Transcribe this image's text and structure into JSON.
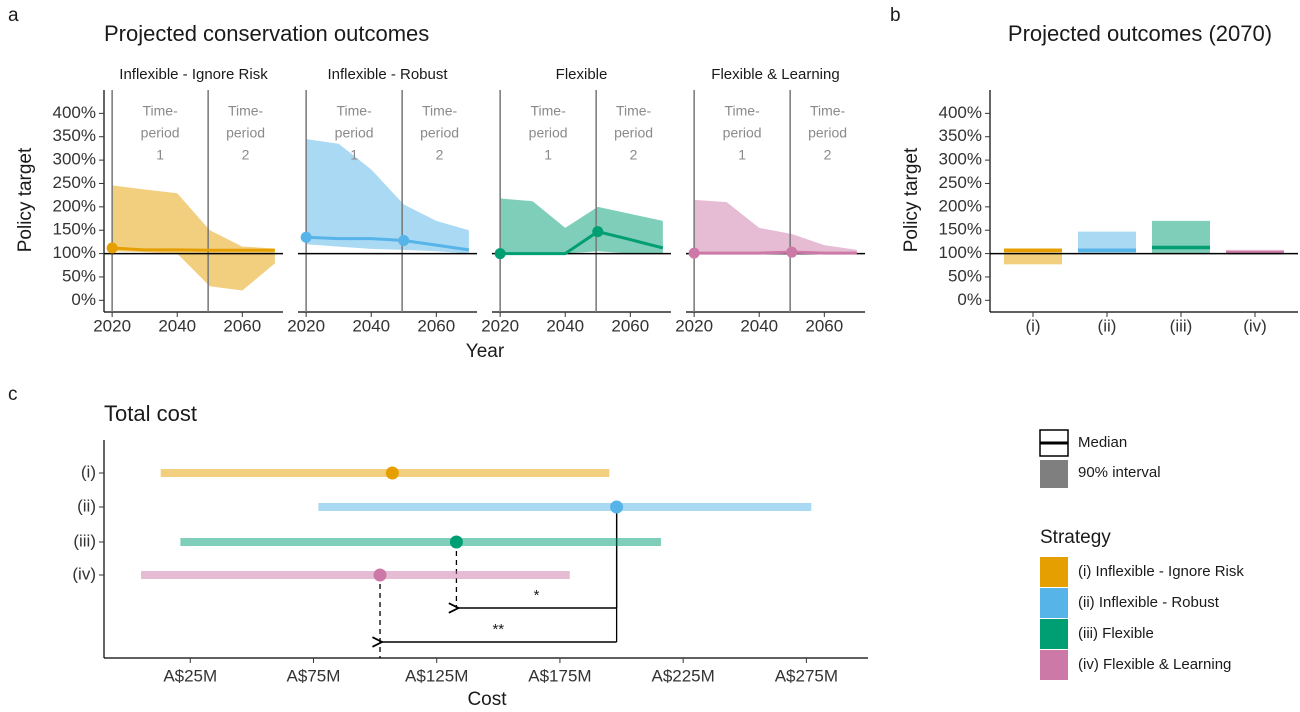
{
  "chart_data": [
    {
      "type": "line",
      "panel": "a",
      "title": "Projected conservation outcomes",
      "x_label": "Year",
      "y_label": "Policy target",
      "xlim": [
        2017.5,
        2072.5
      ],
      "xticks": [
        2020,
        2040,
        2060
      ],
      "ylim": [
        -25,
        450
      ],
      "yticks": [
        {
          "value": 0,
          "label": "0%"
        },
        {
          "value": 50,
          "label": "50%"
        },
        {
          "value": 100,
          "label": "100%"
        },
        {
          "value": 150,
          "label": "150%"
        },
        {
          "value": 200,
          "label": "200%"
        },
        {
          "value": 250,
          "label": "250%"
        },
        {
          "value": 300,
          "label": "300%"
        },
        {
          "value": 350,
          "label": "350%"
        },
        {
          "value": 400,
          "label": "400%"
        }
      ],
      "reference_line": 100,
      "period_breaks": [
        2020,
        2049.5
      ],
      "period_labels": [
        [
          "Time-",
          "period",
          "1"
        ],
        [
          "Time-",
          "period",
          "2"
        ]
      ],
      "facets": [
        {
          "name": "Inflexible - Ignore Risk",
          "color": "#E69F00",
          "x": [
            2020,
            2030,
            2040,
            2050,
            2060,
            2070
          ],
          "median": [
            112,
            108,
            108,
            107,
            107,
            107
          ],
          "lower": [
            105,
            103,
            100,
            30,
            21,
            79
          ],
          "upper": [
            246,
            237,
            229,
            150,
            115,
            111
          ],
          "marker_x": [
            2020
          ]
        },
        {
          "name": "Inflexible - Robust",
          "color": "#56B4E9",
          "x": [
            2020,
            2030,
            2040,
            2050,
            2060,
            2070
          ],
          "median": [
            135,
            132,
            132,
            128,
            118,
            108
          ],
          "lower": [
            120,
            115,
            110,
            108,
            105,
            100
          ],
          "upper": [
            345,
            335,
            280,
            205,
            170,
            150
          ],
          "marker_x": [
            2020,
            2050
          ]
        },
        {
          "name": "Flexible",
          "color": "#009E73",
          "x": [
            2020,
            2030,
            2040,
            2050,
            2060,
            2070
          ],
          "median": [
            100,
            100,
            100,
            147,
            130,
            112
          ],
          "lower": [
            100,
            100,
            100,
            105,
            100,
            100
          ],
          "upper": [
            218,
            212,
            155,
            200,
            185,
            170
          ],
          "marker_x": [
            2020,
            2050
          ]
        },
        {
          "name": "Flexible & Learning",
          "color": "#CC79A7",
          "x": [
            2020,
            2030,
            2040,
            2050,
            2060,
            2070
          ],
          "median": [
            101,
            101,
            101,
            103,
            101,
            101
          ],
          "lower": [
            100,
            100,
            100,
            100,
            100,
            100
          ],
          "upper": [
            215,
            210,
            155,
            142,
            118,
            108
          ],
          "marker_x": [
            2020,
            2050
          ]
        }
      ]
    },
    {
      "type": "range_bar",
      "panel": "b",
      "title": "Projected outcomes (2070)",
      "y_label": "Policy target",
      "ylim": [
        -25,
        450
      ],
      "yticks": [
        {
          "value": 0,
          "label": "0%"
        },
        {
          "value": 50,
          "label": "50%"
        },
        {
          "value": 100,
          "label": "100%"
        },
        {
          "value": 150,
          "label": "150%"
        },
        {
          "value": 200,
          "label": "200%"
        },
        {
          "value": 250,
          "label": "250%"
        },
        {
          "value": 300,
          "label": "300%"
        },
        {
          "value": 350,
          "label": "350%"
        },
        {
          "value": 400,
          "label": "400%"
        }
      ],
      "reference_line": 100,
      "categories": [
        "(i)",
        "(ii)",
        "(iii)",
        "(iv)"
      ],
      "colors": [
        "#E69F00",
        "#56B4E9",
        "#009E73",
        "#CC79A7"
      ],
      "median": [
        107,
        107,
        113,
        102
      ],
      "lower": [
        77,
        100,
        100,
        100
      ],
      "upper": [
        110,
        147,
        170,
        108
      ]
    },
    {
      "type": "interval",
      "panel": "c",
      "title": "Total cost",
      "x_label": "Cost",
      "xlim": [
        -10,
        300
      ],
      "xticks": [
        {
          "value": 25,
          "label": "A$25M"
        },
        {
          "value": 75,
          "label": "A$75M"
        },
        {
          "value": 125,
          "label": "A$125M"
        },
        {
          "value": 175,
          "label": "A$175M"
        },
        {
          "value": 225,
          "label": "A$225M"
        },
        {
          "value": 275,
          "label": "A$275M"
        }
      ],
      "categories": [
        "(i)",
        "(ii)",
        "(iii)",
        "(iv)"
      ],
      "legend_keys": [
        "Median",
        "90% interval"
      ],
      "legend_title": "Strategy",
      "series": [
        {
          "name": "(i) Inflexible - Ignore Risk",
          "color": "#E69F00",
          "median": 107,
          "lower": 13,
          "upper": 195
        },
        {
          "name": "(ii) Inflexible - Robust",
          "color": "#56B4E9",
          "median": 198,
          "lower": 77,
          "upper": 277
        },
        {
          "name": "(iii) Flexible",
          "color": "#009E73",
          "median": 133,
          "lower": 21,
          "upper": 216
        },
        {
          "name": "(iv) Flexible & Learning",
          "color": "#CC79A7",
          "median": 102,
          "lower": 5,
          "upper": 179
        }
      ],
      "comparisons": [
        {
          "from": 1,
          "to": 2,
          "label": "*"
        },
        {
          "from": 1,
          "to": 3,
          "label": "**"
        }
      ]
    }
  ]
}
